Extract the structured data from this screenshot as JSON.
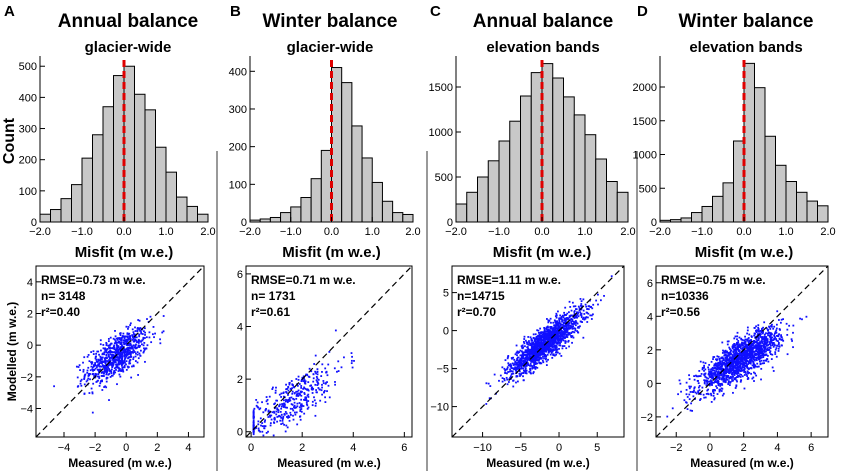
{
  "shared": {
    "hist_xlabel": "Misfit (m w.e.)",
    "hist_ylabel": "Count",
    "scatter_xlabel": "Measured (m w.e.)",
    "scatter_ylabel": "Modelled (m w.e.)",
    "bar_color": "#c8c8c8",
    "zero_line_color": "#e00000",
    "point_color": "#1010ff"
  },
  "chart_data": [
    {
      "type": "bar",
      "panel": "A",
      "title": "Annual balance",
      "subtitle": "glacier-wide",
      "xlabel": "Misfit (m w.e.)",
      "ylabel": "Count",
      "bin_edges": [
        -2.0,
        -1.75,
        -1.5,
        -1.25,
        -1.0,
        -0.75,
        -0.5,
        -0.25,
        0.0,
        0.25,
        0.5,
        0.75,
        1.0,
        1.25,
        1.5,
        1.75,
        2.0
      ],
      "values": [
        25,
        40,
        75,
        120,
        205,
        280,
        370,
        470,
        500,
        410,
        360,
        240,
        160,
        80,
        50,
        25
      ],
      "xlim": [
        -2.0,
        2.0
      ],
      "ylim": [
        0,
        520
      ],
      "xticks": [
        -2.0,
        -1.0,
        0.0,
        1.0,
        2.0
      ],
      "xtick_labels": [
        "−2.0",
        "−1.0",
        "0.0",
        "1.0",
        "2.0"
      ],
      "yticks": [
        0,
        100,
        200,
        300,
        400,
        500
      ],
      "ytick_labels": [
        "0",
        "100",
        "200",
        "300",
        "400",
        "500"
      ],
      "vline": 0.0
    },
    {
      "type": "bar",
      "panel": "B",
      "title": "Winter balance",
      "subtitle": "glacier-wide",
      "xlabel": "Misfit (m w.e.)",
      "ylabel": "Count",
      "bin_edges": [
        -2.0,
        -1.75,
        -1.5,
        -1.25,
        -1.0,
        -0.75,
        -0.5,
        -0.25,
        0.0,
        0.25,
        0.5,
        0.75,
        1.0,
        1.25,
        1.5,
        1.75,
        2.0
      ],
      "values": [
        5,
        8,
        12,
        25,
        40,
        65,
        115,
        190,
        410,
        370,
        255,
        170,
        105,
        55,
        25,
        20
      ],
      "xlim": [
        -2.0,
        2.0
      ],
      "ylim": [
        0,
        430
      ],
      "xticks": [
        -2.0,
        -1.0,
        0.0,
        1.0,
        2.0
      ],
      "xtick_labels": [
        "−2.0",
        "−1.0",
        "0.0",
        "1.0",
        "2.0"
      ],
      "yticks": [
        0,
        100,
        200,
        300,
        400
      ],
      "ytick_labels": [
        "0",
        "100",
        "200",
        "300",
        "400"
      ],
      "vline": 0.0
    },
    {
      "type": "bar",
      "panel": "C",
      "title": "Annual balance",
      "subtitle": "elevation bands",
      "xlabel": "Misfit (m w.e.)",
      "ylabel": "Count",
      "bin_edges": [
        -2.0,
        -1.75,
        -1.5,
        -1.25,
        -1.0,
        -0.75,
        -0.5,
        -0.25,
        0.0,
        0.25,
        0.5,
        0.75,
        1.0,
        1.25,
        1.5,
        1.75,
        2.0
      ],
      "values": [
        200,
        330,
        500,
        680,
        900,
        1120,
        1400,
        1660,
        1760,
        1600,
        1390,
        1190,
        970,
        700,
        450,
        330
      ],
      "xlim": [
        -2.0,
        2.0
      ],
      "ylim": [
        0,
        1800
      ],
      "xticks": [
        -2.0,
        -1.0,
        0.0,
        1.0,
        2.0
      ],
      "xtick_labels": [
        "−2.0",
        "−1.0",
        "0.0",
        "1.0",
        "2.0"
      ],
      "yticks": [
        0,
        500,
        1000,
        1500
      ],
      "ytick_labels": [
        "0",
        "500",
        "1000",
        "1500"
      ],
      "vline": 0.0
    },
    {
      "type": "bar",
      "panel": "D",
      "title": "Winter balance",
      "subtitle": "elevation bands",
      "xlabel": "Misfit (m w.e.)",
      "ylabel": "Count",
      "bin_edges": [
        -2.0,
        -1.75,
        -1.5,
        -1.25,
        -1.0,
        -0.75,
        -0.5,
        -0.25,
        0.0,
        0.25,
        0.5,
        0.75,
        1.0,
        1.25,
        1.5,
        1.75,
        2.0
      ],
      "values": [
        25,
        35,
        60,
        140,
        230,
        380,
        580,
        1200,
        2350,
        1990,
        1270,
        840,
        600,
        440,
        310,
        240
      ],
      "xlim": [
        -2.0,
        2.0
      ],
      "ylim": [
        0,
        2400
      ],
      "xticks": [
        -2.0,
        -1.0,
        0.0,
        1.0,
        2.0
      ],
      "xtick_labels": [
        "−2.0",
        "−1.0",
        "0.0",
        "1.0",
        "2.0"
      ],
      "yticks": [
        0,
        500,
        1000,
        1500,
        2000
      ],
      "ytick_labels": [
        "0",
        "500",
        "1000",
        "1500",
        "2000"
      ],
      "vline": 0.0
    },
    {
      "type": "scatter",
      "panel": "A",
      "xlabel": "Measured (m w.e.)",
      "ylabel": "Modelled (m w.e.)",
      "xlim": [
        -5.8,
        5.0
      ],
      "ylim": [
        -5.8,
        5.0
      ],
      "xticks": [
        -4,
        -2,
        0,
        2,
        4
      ],
      "xtick_labels": [
        "−4",
        "−2",
        "0",
        "2",
        "4"
      ],
      "yticks": [
        -4,
        -2,
        0,
        2,
        4
      ],
      "ytick_labels": [
        "−4",
        "−2",
        "0",
        "2",
        "4"
      ],
      "stats": [
        "RMSE=0.73 m w.e.",
        "n= 3148",
        "r²=0.40"
      ],
      "n": 3148,
      "rmse": 0.73,
      "r2": 0.4,
      "point_cloud": {
        "x_mean": -0.6,
        "x_sd": 1.0,
        "slope": 0.55,
        "intercept": -0.35,
        "noise_sd": 0.65
      },
      "one_to_one_line": true
    },
    {
      "type": "scatter",
      "panel": "B",
      "xlabel": "Measured (m w.e.)",
      "ylabel": "Modelled (m w.e.)",
      "xlim": [
        -0.2,
        6.3
      ],
      "ylim": [
        -0.2,
        6.3
      ],
      "xticks": [
        0,
        2,
        4,
        6
      ],
      "xtick_labels": [
        "0",
        "2",
        "4",
        "6"
      ],
      "yticks": [
        0,
        2,
        4,
        6
      ],
      "ytick_labels": [
        "0",
        "2",
        "4",
        "6"
      ],
      "stats": [
        "RMSE=0.71 m w.e.",
        "n= 1731",
        "r²=0.61"
      ],
      "n": 1731,
      "rmse": 0.71,
      "r2": 0.61,
      "point_cloud": {
        "x_mean": 1.5,
        "x_sd": 1.1,
        "slope": 0.65,
        "intercept": 0.15,
        "noise_sd": 0.45
      },
      "one_to_one_line": true
    },
    {
      "type": "scatter",
      "panel": "C",
      "xlabel": "Measured (m w.e.)",
      "ylabel": "Modelled (m w.e.)",
      "xlim": [
        -14.0,
        8.5
      ],
      "ylim": [
        -14.0,
        8.5
      ],
      "xticks": [
        -10,
        -5,
        0,
        5
      ],
      "xtick_labels": [
        "−10",
        "−5",
        "0",
        "5"
      ],
      "yticks": [
        -10,
        -5,
        0,
        5
      ],
      "ytick_labels": [
        "−10",
        "−5",
        "0",
        "5"
      ],
      "stats": [
        "RMSE=1.11 m w.e.",
        "n=14715",
        "r²=0.70"
      ],
      "n": 14715,
      "rmse": 1.11,
      "r2": 0.7,
      "point_cloud": {
        "x_mean": -1.8,
        "x_sd": 2.4,
        "slope": 0.75,
        "intercept": -0.3,
        "noise_sd": 1.05
      },
      "one_to_one_line": true
    },
    {
      "type": "scatter",
      "panel": "D",
      "xlabel": "Measured (m w.e.)",
      "ylabel": "Modelled (m w.e.)",
      "xlim": [
        -3.2,
        7.0
      ],
      "ylim": [
        -3.2,
        7.0
      ],
      "xticks": [
        -2,
        0,
        2,
        4,
        6
      ],
      "xtick_labels": [
        "−2",
        "0",
        "2",
        "4",
        "6"
      ],
      "yticks": [
        -2,
        0,
        2,
        4,
        6
      ],
      "ytick_labels": [
        "−2",
        "0",
        "2",
        "4",
        "6"
      ],
      "stats": [
        "RMSE=0.75 m w.e.",
        "n=10336",
        "r²=0.56"
      ],
      "n": 10336,
      "rmse": 0.75,
      "r2": 0.56,
      "point_cloud": {
        "x_mean": 1.8,
        "x_sd": 1.2,
        "slope": 0.6,
        "intercept": 0.35,
        "noise_sd": 0.55
      },
      "one_to_one_line": true
    }
  ]
}
